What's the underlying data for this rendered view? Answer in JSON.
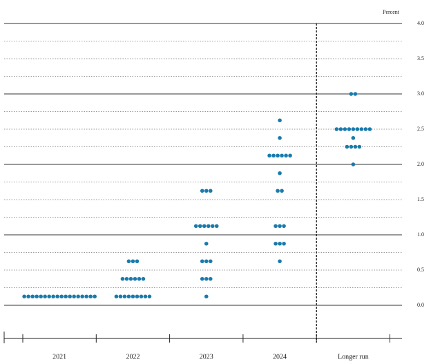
{
  "chart_data": {
    "type": "dot",
    "y_axis_label": "Percent",
    "categories": [
      "2021",
      "2022",
      "2023",
      "2024",
      "Longer run"
    ],
    "color": "#1a7aab",
    "ylim": [
      -0.5,
      4.0
    ],
    "yticks": [
      {
        "value": 0,
        "label": "0.0"
      },
      0.5,
      {
        "value": 1,
        "label": "1.0"
      },
      1.5,
      {
        "value": 2,
        "label": "2.0"
      },
      2.5,
      {
        "value": 3,
        "label": "3.0"
      },
      3.5,
      {
        "value": 4,
        "label": "4.0"
      }
    ],
    "dots": [
      [
        {
          "value": 0.125,
          "count": 18
        }
      ],
      [
        {
          "value": 0.125,
          "count": 9
        },
        {
          "value": 0.375,
          "count": 6
        },
        {
          "value": 0.625,
          "count": 3
        }
      ],
      [
        {
          "value": 0.125,
          "count": 1
        },
        {
          "value": 0.375,
          "count": 3
        },
        {
          "value": 0.625,
          "count": 3
        },
        {
          "value": 0.875,
          "count": 1
        },
        {
          "value": 1.125,
          "count": 6
        },
        {
          "value": 1.625,
          "count": 3
        }
      ],
      [
        {
          "value": 0.625,
          "count": 1
        },
        {
          "value": 0.875,
          "count": 3
        },
        {
          "value": 1.125,
          "count": 3
        },
        {
          "value": 1.625,
          "count": 2
        },
        {
          "value": 1.875,
          "count": 1
        },
        {
          "value": 2.125,
          "count": 6
        },
        {
          "value": 2.375,
          "count": 1
        },
        {
          "value": 2.625,
          "count": 1
        }
      ],
      [
        {
          "value": 2.0,
          "count": 1
        },
        {
          "value": 2.25,
          "count": 4
        },
        {
          "value": 2.375,
          "count": 1
        },
        {
          "value": 2.5,
          "count": 9
        },
        {
          "value": 3.0,
          "count": 2
        }
      ]
    ]
  }
}
